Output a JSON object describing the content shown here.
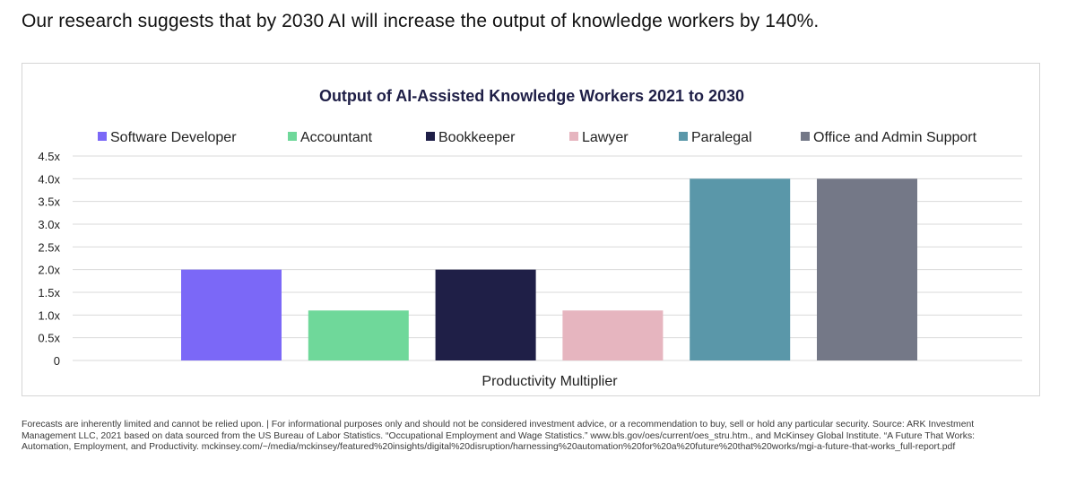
{
  "headline": "Our research suggests that by 2030 AI will increase the output of knowledge workers by 140%.",
  "footnote": "Forecasts are inherently limited and cannot be relied upon. | For informational purposes only and should not be considered investment advice, or a recommendation to buy, sell or hold any particular security. Source: ARK Investment Management LLC, 2021 based on data sourced from the US Bureau of Labor Statistics. “Occupational Employment and Wage Statistics.” www.bls.gov/oes/current/oes_stru.htm., and McKinsey Global Institute. “A Future That Works: Automation, Employment, and Productivity. mckinsey.com/~/media/mckinsey/featured%20insights/digital%20disruption/harnessing%20automation%20for%20a%20future%20that%20works/mgi-a-future-that-works_full-report.pdf",
  "chart_data": {
    "type": "bar",
    "title": "Output of AI-Assisted Knowledge Workers 2021 to 2030",
    "xlabel": "Productivity Multiplier",
    "ylabel": "",
    "ylim": [
      0,
      4.5
    ],
    "yticks": [
      "0",
      "0.5x",
      "1.0x",
      "1.5x",
      "2.0x",
      "2.5x",
      "3.0x",
      "3.5x",
      "4.0x",
      "4.5x"
    ],
    "grid": true,
    "legend_position": "top",
    "series": [
      {
        "name": "Software Developer",
        "value": 2.0,
        "color": "#7B68F7"
      },
      {
        "name": "Accountant",
        "value": 1.1,
        "color": "#6FD89A"
      },
      {
        "name": "Bookkeeper",
        "value": 2.0,
        "color": "#1F1F47"
      },
      {
        "name": "Lawyer",
        "value": 1.1,
        "color": "#E6B5BF"
      },
      {
        "name": "Paralegal",
        "value": 4.0,
        "color": "#5A97A9"
      },
      {
        "name": "Office and Admin Support",
        "value": 4.0,
        "color": "#747887"
      }
    ]
  }
}
